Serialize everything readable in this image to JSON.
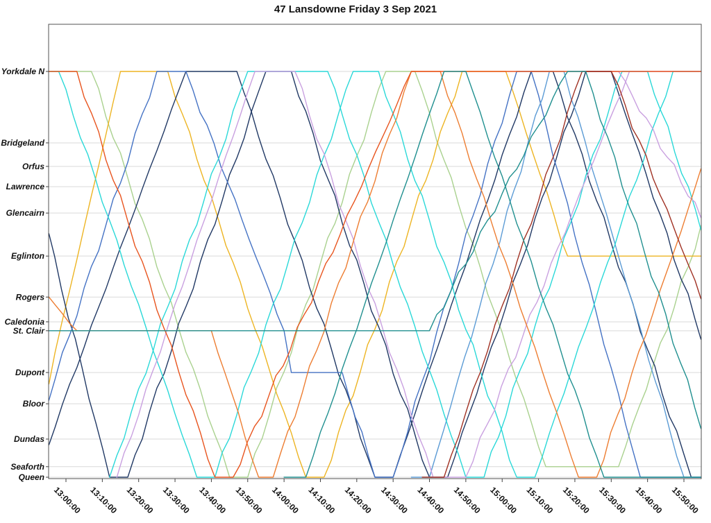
{
  "chart_data": {
    "type": "line",
    "title": "47 Lansdowne Friday 3 Sep 2021",
    "xlabel": "",
    "ylabel": "",
    "grid": "horizontal",
    "legend": "none",
    "x_axis": {
      "domain_minutes": [
        -5,
        175
      ],
      "ticks": [
        {
          "minutes": 0,
          "label": "13:00:00"
        },
        {
          "minutes": 10,
          "label": "13:10:00"
        },
        {
          "minutes": 20,
          "label": "13:20:00"
        },
        {
          "minutes": 30,
          "label": "13:30:00"
        },
        {
          "minutes": 40,
          "label": "13:40:00"
        },
        {
          "minutes": 50,
          "label": "13:50:00"
        },
        {
          "minutes": 60,
          "label": "14:00:00"
        },
        {
          "minutes": 70,
          "label": "14:10:00"
        },
        {
          "minutes": 80,
          "label": "14:20:00"
        },
        {
          "minutes": 90,
          "label": "14:30:00"
        },
        {
          "minutes": 100,
          "label": "14:40:00"
        },
        {
          "minutes": 110,
          "label": "14:50:00"
        },
        {
          "minutes": 120,
          "label": "15:00:00"
        },
        {
          "minutes": 130,
          "label": "15:10:00"
        },
        {
          "minutes": 140,
          "label": "15:20:00"
        },
        {
          "minutes": 150,
          "label": "15:30:00"
        },
        {
          "minutes": 160,
          "label": "15:40:00"
        },
        {
          "minutes": 170,
          "label": "15:50:00"
        }
      ]
    },
    "y_axis": {
      "unit": "stops (relative distance 0=Queen, 10=Yorkdale N)",
      "stations": [
        {
          "label": "Yorkdale N",
          "d": 10
        },
        {
          "label": "Bridgeland",
          "d": 8.24
        },
        {
          "label": "Orfus",
          "d": 7.66
        },
        {
          "label": "Lawrence",
          "d": 7.16
        },
        {
          "label": "Glencairn",
          "d": 6.51
        },
        {
          "label": "Eglinton",
          "d": 5.45
        },
        {
          "label": "Rogers",
          "d": 4.44
        },
        {
          "label": "Caledonia",
          "d": 3.83
        },
        {
          "label": "St. Clair",
          "d": 3.61
        },
        {
          "label": "Dupont",
          "d": 2.58
        },
        {
          "label": "Bloor",
          "d": 1.81
        },
        {
          "label": "Dundas",
          "d": 0.94
        },
        {
          "label": "Seaforth",
          "d": 0.26
        },
        {
          "label": "Queen",
          "d": 0
        }
      ]
    },
    "series": [
      {
        "name": "run-green",
        "color": "#A9D18E",
        "points": [
          [
            -5,
            10
          ],
          [
            7,
            10
          ],
          [
            45,
            0
          ],
          [
            50,
            0
          ],
          [
            88,
            10
          ],
          [
            96,
            10
          ],
          [
            132,
            0.26
          ],
          [
            152,
            0.26
          ],
          [
            175,
            6.2
          ]
        ]
      },
      {
        "name": "run-gold",
        "color": "#EDB422",
        "points": [
          [
            -5,
            2.3
          ],
          [
            15,
            10
          ],
          [
            28,
            10
          ],
          [
            66,
            0
          ],
          [
            71,
            0
          ],
          [
            109,
            10
          ],
          [
            121,
            10
          ],
          [
            138,
            5.45
          ],
          [
            175,
            5.45
          ]
        ]
      },
      {
        "name": "run-navy-a",
        "color": "#203864",
        "points": [
          [
            -5,
            6.0
          ],
          [
            12,
            0
          ],
          [
            17,
            0
          ],
          [
            55,
            10
          ],
          [
            62,
            10
          ],
          [
            100,
            0
          ],
          [
            105,
            0
          ],
          [
            143,
            10
          ],
          [
            150,
            10
          ],
          [
            175,
            3.4
          ]
        ]
      },
      {
        "name": "run-navy-b",
        "color": "#203864",
        "points": [
          [
            -5,
            0.8
          ],
          [
            33,
            10
          ],
          [
            47,
            10
          ],
          [
            85,
            0
          ],
          [
            90,
            0
          ],
          [
            128,
            10
          ],
          [
            134,
            10
          ],
          [
            172,
            0
          ],
          [
            175,
            0
          ]
        ]
      },
      {
        "name": "run-royal-blue",
        "color": "#4472C4",
        "points": [
          [
            -5,
            1.9
          ],
          [
            25,
            10
          ],
          [
            33,
            10
          ],
          [
            60,
            3.61
          ],
          [
            62,
            2.58
          ],
          [
            76,
            2.58
          ],
          [
            85,
            0
          ],
          [
            90,
            0
          ],
          [
            124,
            10
          ],
          [
            128,
            10
          ],
          [
            158,
            0
          ],
          [
            175,
            0
          ]
        ]
      },
      {
        "name": "run-cornflower",
        "color": "#5B9BD5",
        "points": [
          [
            95,
            0
          ],
          [
            100,
            0
          ],
          [
            133,
            10
          ],
          [
            137,
            10
          ],
          [
            170,
            0
          ],
          [
            175,
            0
          ]
        ]
      },
      {
        "name": "run-cyan-a",
        "color": "#29D8D8",
        "points": [
          [
            -5,
            10
          ],
          [
            -2,
            10
          ],
          [
            36,
            0
          ],
          [
            41,
            0
          ],
          [
            79,
            10
          ],
          [
            86,
            10
          ],
          [
            124,
            0
          ],
          [
            129,
            0
          ],
          [
            167,
            10
          ],
          [
            175,
            10
          ]
        ]
      },
      {
        "name": "run-cyan-b",
        "color": "#29D8D8",
        "points": [
          [
            12,
            0
          ],
          [
            50,
            10
          ],
          [
            72,
            10
          ],
          [
            110,
            0
          ],
          [
            115,
            0
          ],
          [
            153,
            10
          ],
          [
            160,
            10
          ],
          [
            175,
            6.1
          ]
        ]
      },
      {
        "name": "run-orchid-a",
        "color": "#C9A0E0",
        "points": [
          [
            14,
            0
          ],
          [
            52,
            10
          ],
          [
            63,
            10
          ],
          [
            101,
            0
          ],
          [
            110,
            0
          ],
          [
            155,
            10
          ],
          [
            175,
            10
          ]
        ]
      },
      {
        "name": "run-orchid-b",
        "color": "#C9A0E0",
        "points": [
          [
            144,
            10
          ],
          [
            152,
            10
          ],
          [
            175,
            6.4
          ]
        ]
      },
      {
        "name": "run-orange",
        "color": "#ED7D31",
        "points": [
          [
            -5,
            4.44
          ],
          [
            3,
            3.61
          ],
          [
            40,
            3.61
          ],
          [
            53,
            0
          ],
          [
            57,
            0
          ],
          [
            95,
            10
          ],
          [
            103,
            10
          ],
          [
            141,
            0
          ],
          [
            146,
            0
          ],
          [
            175,
            7.6
          ]
        ]
      },
      {
        "name": "run-vermilion",
        "color": "#E8541E",
        "points": [
          [
            -5,
            10
          ],
          [
            3,
            10
          ],
          [
            41,
            0
          ],
          [
            46,
            0
          ],
          [
            95,
            10
          ],
          [
            175,
            10
          ]
        ]
      },
      {
        "name": "run-dark-red",
        "color": "#A03123",
        "points": [
          [
            98,
            0
          ],
          [
            104,
            0
          ],
          [
            142,
            10
          ],
          [
            150,
            10
          ],
          [
            175,
            4.4
          ]
        ]
      },
      {
        "name": "run-teal-a",
        "color": "#1F8F8F",
        "points": [
          [
            -5,
            3.61
          ],
          [
            100,
            3.61
          ],
          [
            138,
            10
          ],
          [
            143,
            10
          ],
          [
            175,
            1.2
          ]
        ]
      },
      {
        "name": "run-teal-b",
        "color": "#1F8F8F",
        "points": [
          [
            60,
            0
          ],
          [
            66,
            0
          ],
          [
            104,
            10
          ],
          [
            110,
            10
          ],
          [
            148,
            0
          ],
          [
            175,
            0
          ]
        ]
      }
    ]
  }
}
